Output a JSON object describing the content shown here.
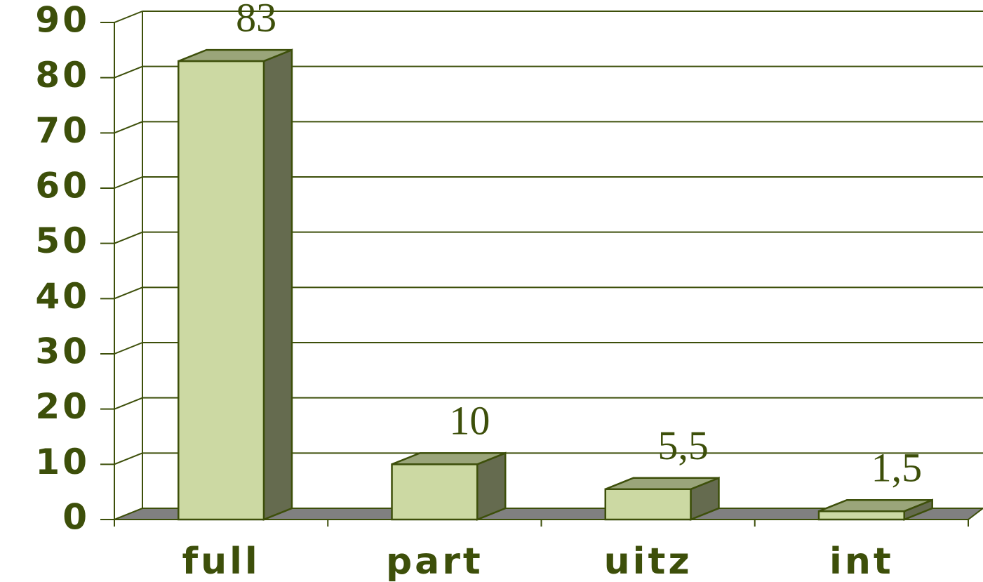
{
  "chart_data": {
    "type": "bar",
    "categories": [
      "full",
      "part",
      "uitz",
      "int"
    ],
    "values": [
      83,
      10,
      5.5,
      1.5
    ],
    "value_labels": [
      "83",
      "10",
      "5,5",
      "1,5"
    ],
    "color": "#ccd9a3",
    "ylim": [
      0,
      90
    ],
    "yticks": [
      0,
      10,
      20,
      30,
      40,
      50,
      60,
      70,
      80,
      90
    ],
    "grid": true
  }
}
